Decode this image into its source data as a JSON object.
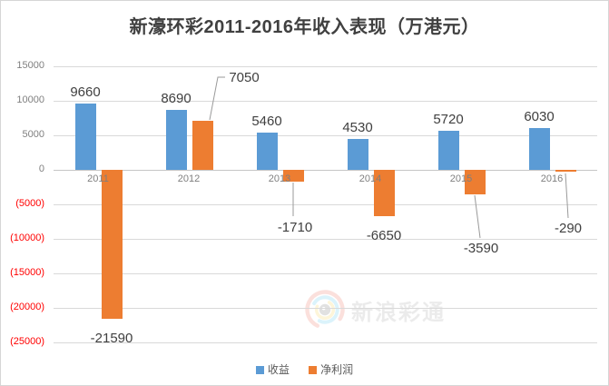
{
  "title": "新濠环彩2011-2016年收入表现（万港元）",
  "watermark": {
    "text": "新浪彩通"
  },
  "legend": [
    {
      "label": "收益",
      "color": "#5B9BD5"
    },
    {
      "label": "净利润",
      "color": "#ED7D31"
    }
  ],
  "chart_data": {
    "type": "bar",
    "title": "新濠环彩2011-2016年收入表现（万港元）",
    "unit": "万港元",
    "categories": [
      "2011",
      "2012",
      "2013",
      "2014",
      "2015",
      "2016"
    ],
    "series": [
      {
        "name": "收益",
        "color": "#5B9BD5",
        "values": [
          9660,
          8690,
          5460,
          4530,
          5720,
          6030
        ]
      },
      {
        "name": "净利润",
        "color": "#ED7D31",
        "values": [
          -21590,
          7050,
          -1710,
          -6650,
          -3590,
          -290
        ]
      }
    ],
    "ylim": [
      -25000,
      15000
    ],
    "y_tick_values": [
      15000,
      10000,
      5000,
      0,
      -5000,
      -10000,
      -15000,
      -20000,
      -25000
    ],
    "y_tick_labels": [
      "15000",
      "10000",
      "5000",
      "0",
      "(5000)",
      "(10000)",
      "(15000)",
      "(20000)",
      "(25000)"
    ],
    "negative_tick_color": "#FF0000",
    "grid": true,
    "data_labels": true,
    "legend_position": "bottom"
  }
}
